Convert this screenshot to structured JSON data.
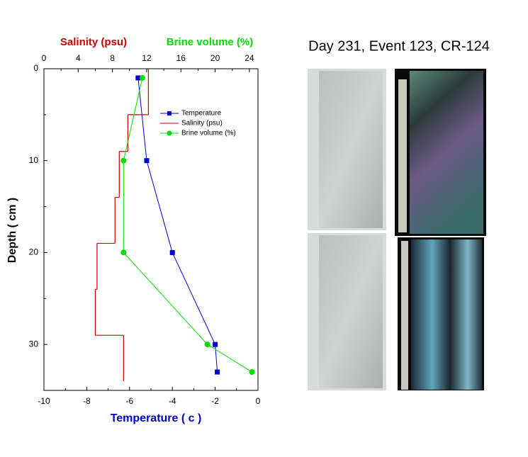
{
  "chart_data": {
    "type": "line",
    "title": "Day 231, Event 123, CR-124",
    "x_label": "Temperature ( c )",
    "y_label": "Depth ( cm )",
    "xlim": [
      -10,
      0
    ],
    "xticks": [
      -10,
      -8,
      -6,
      -4,
      -2,
      0
    ],
    "x2lim": [
      0,
      25
    ],
    "x2ticks": [
      0,
      4,
      8,
      12,
      16,
      20,
      24
    ],
    "ylim": [
      0,
      35
    ],
    "yticks": [
      0,
      10,
      20,
      30
    ],
    "y_inverted": true,
    "series": [
      {
        "name": "Temperature",
        "color": "#0000cc",
        "axis": "x",
        "marker": "square",
        "depth": [
          1,
          10,
          20,
          30,
          33
        ],
        "values": [
          -5.6,
          -5.2,
          -4.0,
          -2.0,
          -1.9
        ]
      },
      {
        "name": "Salinity (psu)",
        "color": "#cc0000",
        "axis": "x2",
        "style": "step",
        "depth_top": [
          0,
          5,
          9,
          14,
          19,
          24,
          29
        ],
        "depth_bottom": [
          5,
          9,
          14,
          19,
          24,
          29,
          34
        ],
        "values": [
          12.2,
          9.8,
          8.8,
          8.3,
          6.2,
          6.0,
          9.3
        ]
      },
      {
        "name": "Brine volume (%)",
        "color": "#00dd00",
        "axis": "x2",
        "marker": "circle",
        "depth": [
          1,
          10,
          20,
          30,
          33
        ],
        "values": [
          11.5,
          9.3,
          9.3,
          19.1,
          24.3
        ]
      }
    ]
  }
}
